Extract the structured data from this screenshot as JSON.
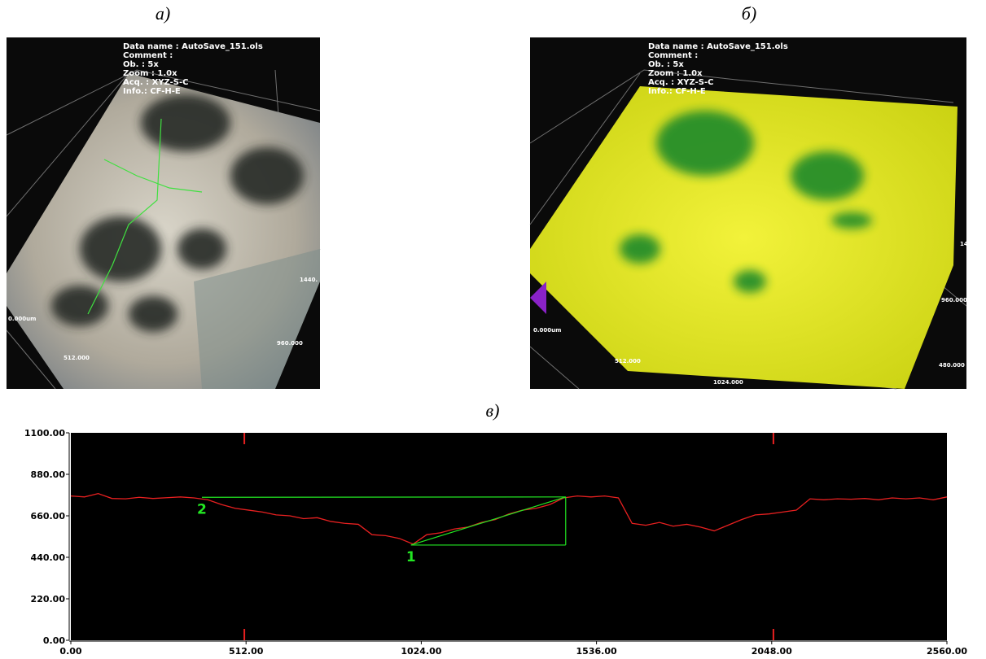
{
  "panel_a": {
    "label": "а)",
    "info": [
      "Data name : AutoSave_151.ols",
      "Comment  :",
      "Ob.  : 5x",
      "Zoom : 1.0x",
      "Acq. : XYZ-S-C",
      "Info.: CF-H-E"
    ],
    "axis_labels": [
      "0.000um",
      "512.000",
      "960.000",
      "1440."
    ]
  },
  "panel_b": {
    "label": "б)",
    "info": [
      "Data name : AutoSave_151.ols",
      "Comment  :",
      "Ob.  : 5x",
      "Zoom : 1.0x",
      "Acq. : XYZ-S-C",
      "Info.: CF-H-E"
    ],
    "axis_labels": [
      "0.000um",
      "512.000",
      "1024.000",
      "960.000",
      "480.000",
      "14"
    ]
  },
  "chart_data": {
    "type": "line",
    "title": "в)",
    "x": [
      0,
      40,
      80,
      120,
      160,
      200,
      240,
      280,
      320,
      360,
      400,
      440,
      480,
      520,
      560,
      600,
      640,
      680,
      720,
      760,
      800,
      840,
      880,
      920,
      960,
      1000,
      1040,
      1080,
      1120,
      1160,
      1200,
      1240,
      1280,
      1320,
      1360,
      1400,
      1440,
      1480,
      1520,
      1560,
      1600,
      1640,
      1680,
      1720,
      1760,
      1800,
      1840,
      1880,
      1920,
      1960,
      2000,
      2040,
      2080,
      2120,
      2160,
      2200,
      2240,
      2280,
      2320,
      2360,
      2400,
      2440,
      2480,
      2520,
      2560
    ],
    "values": [
      765,
      760,
      778,
      752,
      750,
      758,
      752,
      756,
      760,
      755,
      745,
      720,
      700,
      690,
      680,
      665,
      660,
      645,
      650,
      630,
      620,
      615,
      560,
      555,
      540,
      510,
      560,
      570,
      590,
      600,
      625,
      640,
      670,
      690,
      700,
      720,
      755,
      765,
      760,
      765,
      755,
      620,
      610,
      625,
      605,
      615,
      600,
      580,
      610,
      640,
      665,
      670,
      680,
      690,
      750,
      745,
      750,
      748,
      752,
      745,
      755,
      750,
      755,
      745,
      760
    ],
    "color": "#e82020",
    "xlim": [
      0,
      2560
    ],
    "ylim": [
      0,
      1100
    ],
    "xticks": [
      {
        "value": 0,
        "label": "0.00"
      },
      {
        "value": 512,
        "label": "512.00"
      },
      {
        "value": 1024,
        "label": "1024.00"
      },
      {
        "value": 1536,
        "label": "1536.00"
      },
      {
        "value": 2048,
        "label": "2048.00"
      },
      {
        "value": 2560,
        "label": "2560.00"
      }
    ],
    "yticks": [
      {
        "value": 0,
        "label": "0.00"
      },
      {
        "value": 220,
        "label": "220.00"
      },
      {
        "value": 440,
        "label": "440.00"
      },
      {
        "value": 660,
        "label": "660.00"
      },
      {
        "value": 880,
        "label": "880.00"
      },
      {
        "value": 1100,
        "label": "1100.00"
      }
    ],
    "cursors": [
      507,
      2053
    ],
    "markers": [
      {
        "label": "2",
        "x": 383,
        "y": 758
      },
      {
        "label": "1",
        "x": 994,
        "y": 505
      },
      {
        "x": 1446,
        "y": 760
      }
    ],
    "marker_color": "#22e622"
  }
}
